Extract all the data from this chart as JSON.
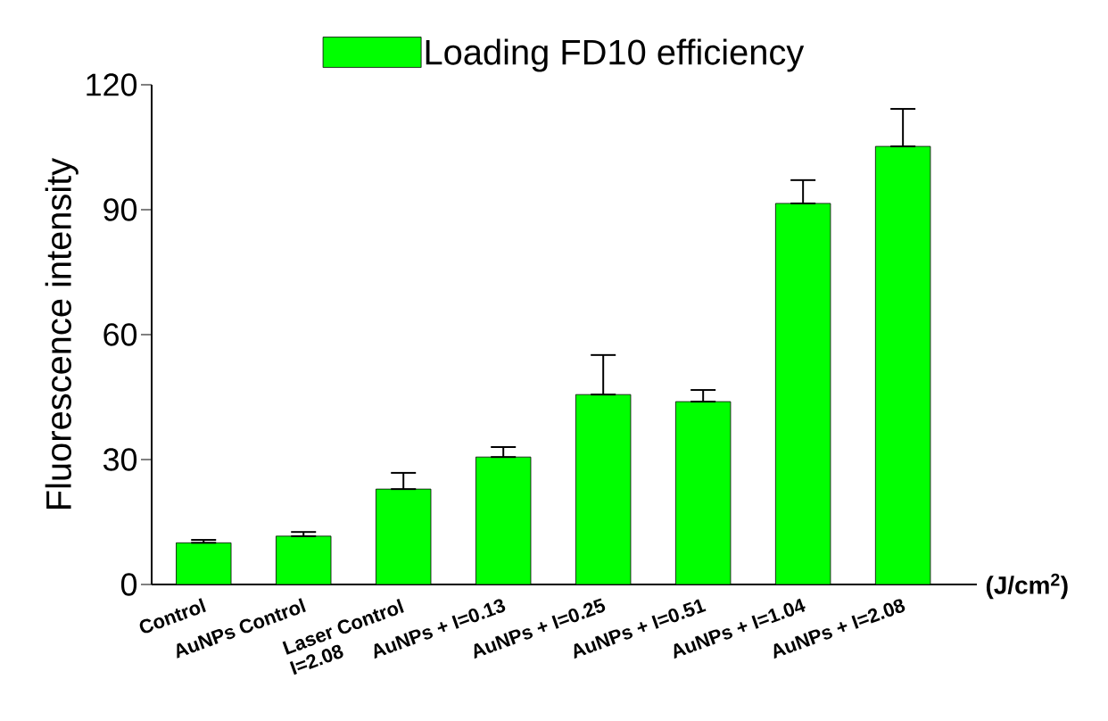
{
  "chart_data": {
    "type": "bar",
    "categories": [
      "Control",
      "AuNPs Control",
      "Laser Control I=2.08",
      "AuNPs + I=0.13",
      "AuNPs + I=0.25",
      "AuNPs + I=0.51",
      "AuNPs + I=1.04",
      "AuNPs + I=2.08"
    ],
    "series": [
      {
        "name": "Loading FD10 efficiency",
        "color": "#00ff00",
        "values": [
          10,
          11.6,
          22.9,
          30.6,
          45.6,
          43.9,
          91.5,
          105.2
        ],
        "errors": [
          [
            10,
            10.7
          ],
          [
            11.6,
            12.6
          ],
          [
            22.9,
            26.8
          ],
          [
            30.6,
            33
          ],
          [
            45.6,
            55.1
          ],
          [
            43.9,
            46.7
          ],
          [
            91.5,
            97.1
          ],
          [
            105.2,
            114.2
          ]
        ]
      }
    ],
    "xlabel": "(J/cm$^{2}$)",
    "ylabel": "Fluorescence intensity",
    "ylim": [
      0,
      120
    ],
    "yticks": [
      0,
      30,
      60,
      90,
      120
    ],
    "legend": "top"
  }
}
